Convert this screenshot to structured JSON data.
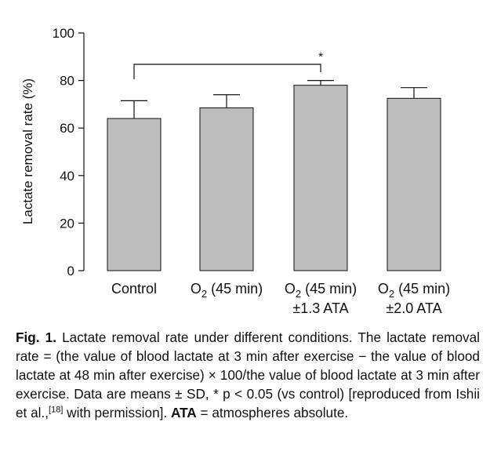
{
  "chart_data": {
    "type": "bar",
    "ylabel": "Lactate removal rate (%)",
    "ylim": [
      0,
      100
    ],
    "yticks": [
      0,
      20,
      40,
      60,
      80,
      100
    ],
    "categories": [
      {
        "lines": [
          {
            "main": "Control"
          }
        ]
      },
      {
        "lines": [
          {
            "main": "O",
            "sub": "2",
            "rest": " (45 min)"
          }
        ]
      },
      {
        "lines": [
          {
            "main": "O",
            "sub": "2",
            "rest": " (45 min)"
          },
          {
            "main": "±1.3 ATA"
          }
        ]
      },
      {
        "lines": [
          {
            "main": "O",
            "sub": "2",
            "rest": " (45 min)"
          },
          {
            "main": "±2.0 ATA"
          }
        ]
      }
    ],
    "values": [
      64,
      68.5,
      78,
      72.5
    ],
    "sd": [
      7.5,
      5.5,
      2,
      4.5
    ],
    "significance": {
      "from": 0,
      "to": 2,
      "label": "*"
    },
    "bar_color": "#bdbdbd",
    "grid": false
  },
  "caption": {
    "fig_label": "Fig. 1.",
    "text1": " Lactate removal rate under different conditions. The lactate removal rate = (the value of blood lactate at 3 min after exercise − the value of blood lactate at 48 min after exercise) × 100/the value of blood lactate at 3 min after exercise. Data are means ± SD, * p < 0.05 (vs control) [reproduced from Ishii et al.,",
    "ref": "[18]",
    "text2": " with permission]. ",
    "ata": "ATA",
    "text3": " = atmospheres absolute."
  }
}
